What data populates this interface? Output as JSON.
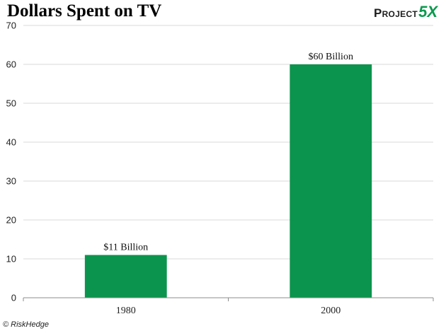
{
  "header": {
    "title": "Dollars Spent on TV",
    "brand_text": "Project",
    "brand_mark": "5X"
  },
  "footer": {
    "copyright": "© RiskHedge"
  },
  "colors": {
    "bar": "#0b944d",
    "grid": "#d9d9d9",
    "axis": "#8c8c8c"
  },
  "chart_data": {
    "type": "bar",
    "categories": [
      "1980",
      "2000"
    ],
    "values": [
      11,
      60
    ],
    "data_labels": [
      "$11 Billion",
      "$60 Billion"
    ],
    "title": "Dollars Spent on TV",
    "xlabel": "",
    "ylabel": "",
    "ylim": [
      0,
      70
    ],
    "yticks": [
      0,
      10,
      20,
      30,
      40,
      50,
      60,
      70
    ],
    "grid": true,
    "legend": "none"
  }
}
